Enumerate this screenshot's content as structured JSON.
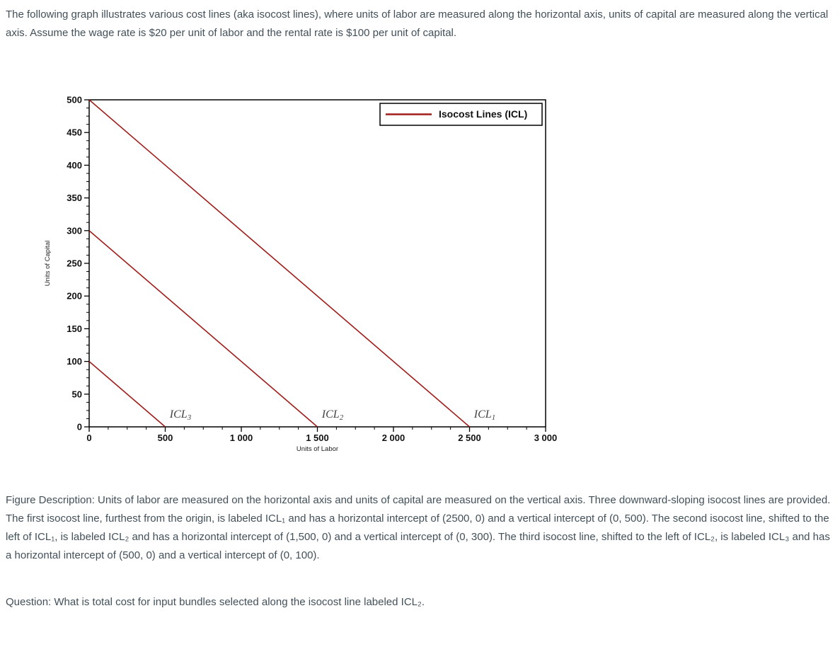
{
  "intro": {
    "text": "The following graph illustrates various cost lines (aka isocost lines), where units of labor are measured along the horizontal axis, units of capital are measured along the vertical axis.  Assume the wage rate is $20 per unit of labor and the rental rate is $100 per unit of capital."
  },
  "chart_data": {
    "type": "line",
    "title": "",
    "xlabel": "Units of Labor",
    "ylabel": "Units of Capital",
    "xlim": [
      0,
      3000
    ],
    "ylim": [
      0,
      500
    ],
    "grid": false,
    "x_ticks": [
      0,
      500,
      1000,
      1500,
      2000,
      2500,
      3000
    ],
    "x_tick_labels": [
      "0",
      "500",
      "1 000",
      "1 500",
      "2 000",
      "2 500",
      "3 000"
    ],
    "y_ticks": [
      0,
      50,
      100,
      150,
      200,
      250,
      300,
      350,
      400,
      450,
      500
    ],
    "y_tick_labels": [
      "0",
      "50",
      "100",
      "150",
      "200",
      "250",
      "300",
      "350",
      "400",
      "450",
      "500"
    ],
    "minor_divisions": 4,
    "line_color": "#A01D1A",
    "legend": {
      "position": "top-right",
      "entries": [
        {
          "label": "Isocost Lines (ICL)",
          "color": "#A01D1A"
        }
      ]
    },
    "series": [
      {
        "name": "ICL1",
        "label_text": "ICL",
        "label_sub": "1",
        "points": [
          [
            0,
            500
          ],
          [
            2500,
            0
          ]
        ],
        "label_at": [
          2600,
          14
        ]
      },
      {
        "name": "ICL2",
        "label_text": "ICL",
        "label_sub": "2",
        "points": [
          [
            0,
            300
          ],
          [
            1500,
            0
          ]
        ],
        "label_at": [
          1600,
          14
        ]
      },
      {
        "name": "ICL3",
        "label_text": "ICL",
        "label_sub": "3",
        "points": [
          [
            0,
            100
          ],
          [
            500,
            0
          ]
        ],
        "label_at": [
          600,
          14
        ]
      }
    ]
  },
  "figure": {
    "text": "Figure Description: Units of labor are measured on the horizontal axis and units of capital are measured on the vertical axis. Three downward-sloping isocost lines are provided. The first isocost line, furthest from the origin, is labeled ICL₁ and has a horizontal intercept of (2500, 0) and a vertical intercept of (0, 500). The second isocost line, shifted to the left of ICL₁, is labeled ICL₂ and has a horizontal intercept of (1,500, 0) and a vertical intercept of (0, 300). The third isocost line, shifted to the left of ICL₂, is labeled ICL₃ and has a horizontal intercept of (500, 0) and a vertical intercept of (0, 100)."
  },
  "question": {
    "text": "Question: What is total cost for input bundles selected along the isocost line labeled ICL₂."
  }
}
